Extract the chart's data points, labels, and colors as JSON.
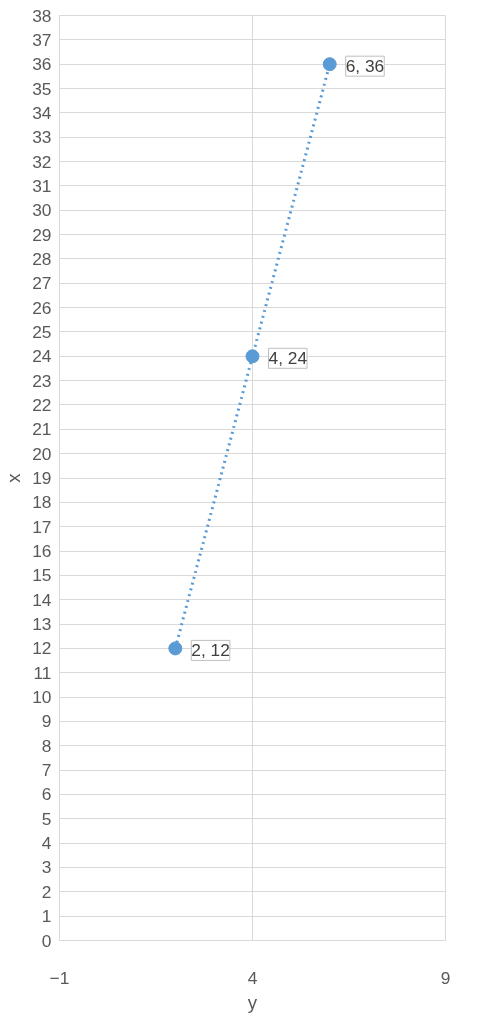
{
  "chart_data": {
    "type": "scatter",
    "xlabel": "y",
    "ylabel": "x",
    "x": [
      2,
      4,
      6
    ],
    "series": [
      {
        "color": "#5b9bd5",
        "values": [
          12,
          24,
          36
        ],
        "value_labels": [
          "2, 12",
          "4, 24",
          "6, 36"
        ],
        "marker": "circle",
        "line_style": "dotted"
      }
    ],
    "xlim": [
      -1,
      9
    ],
    "xticks": [
      -1,
      4,
      9
    ],
    "ylim": [
      0,
      38
    ],
    "yticks": [
      0,
      1,
      2,
      3,
      4,
      5,
      6,
      7,
      8,
      9,
      10,
      11,
      12,
      13,
      14,
      15,
      16,
      17,
      18,
      19,
      20,
      21,
      22,
      23,
      24,
      25,
      26,
      27,
      28,
      29,
      30,
      31,
      32,
      33,
      34,
      35,
      36,
      37,
      38
    ],
    "grid": true
  }
}
